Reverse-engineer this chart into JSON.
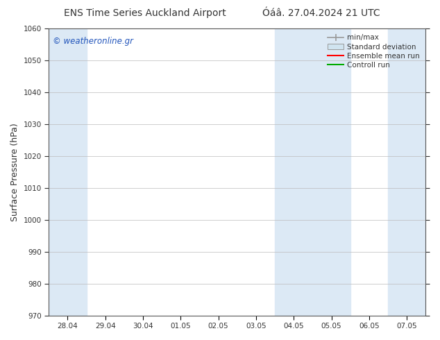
{
  "title_left": "ENS Time Series Auckland Airport",
  "title_right": "Óáâ. 27.04.2024 21 UTC",
  "ylabel": "Surface Pressure (hPa)",
  "ylim": [
    970,
    1060
  ],
  "yticks": [
    970,
    980,
    990,
    1000,
    1010,
    1020,
    1030,
    1040,
    1050,
    1060
  ],
  "x_labels": [
    "28.04",
    "29.04",
    "30.04",
    "01.05",
    "02.05",
    "03.05",
    "04.05",
    "05.05",
    "06.05",
    "07.05"
  ],
  "x_values": [
    0,
    1,
    2,
    3,
    4,
    5,
    6,
    7,
    8,
    9
  ],
  "xlim": [
    -0.5,
    9.5
  ],
  "shaded_bands": [
    {
      "x_start": -0.5,
      "x_end": 0.5,
      "color": "#dce9f5"
    },
    {
      "x_start": 5.5,
      "x_end": 7.5,
      "color": "#dce9f5"
    },
    {
      "x_start": 8.5,
      "x_end": 9.5,
      "color": "#dce9f5"
    }
  ],
  "watermark_text": "© weatheronline.gr",
  "watermark_color": "#2255bb",
  "background_color": "#ffffff",
  "plot_bg_color": "#ffffff",
  "grid_color": "#bbbbbb",
  "tick_label_color": "#333333",
  "title_color": "#333333",
  "legend_text_color": "#333333",
  "minmax_color": "#999999",
  "std_face_color": "#d0e4f0",
  "std_edge_color": "#999999",
  "ensemble_color": "#ff0000",
  "control_color": "#00aa00",
  "figsize": [
    6.34,
    4.9
  ],
  "dpi": 100
}
